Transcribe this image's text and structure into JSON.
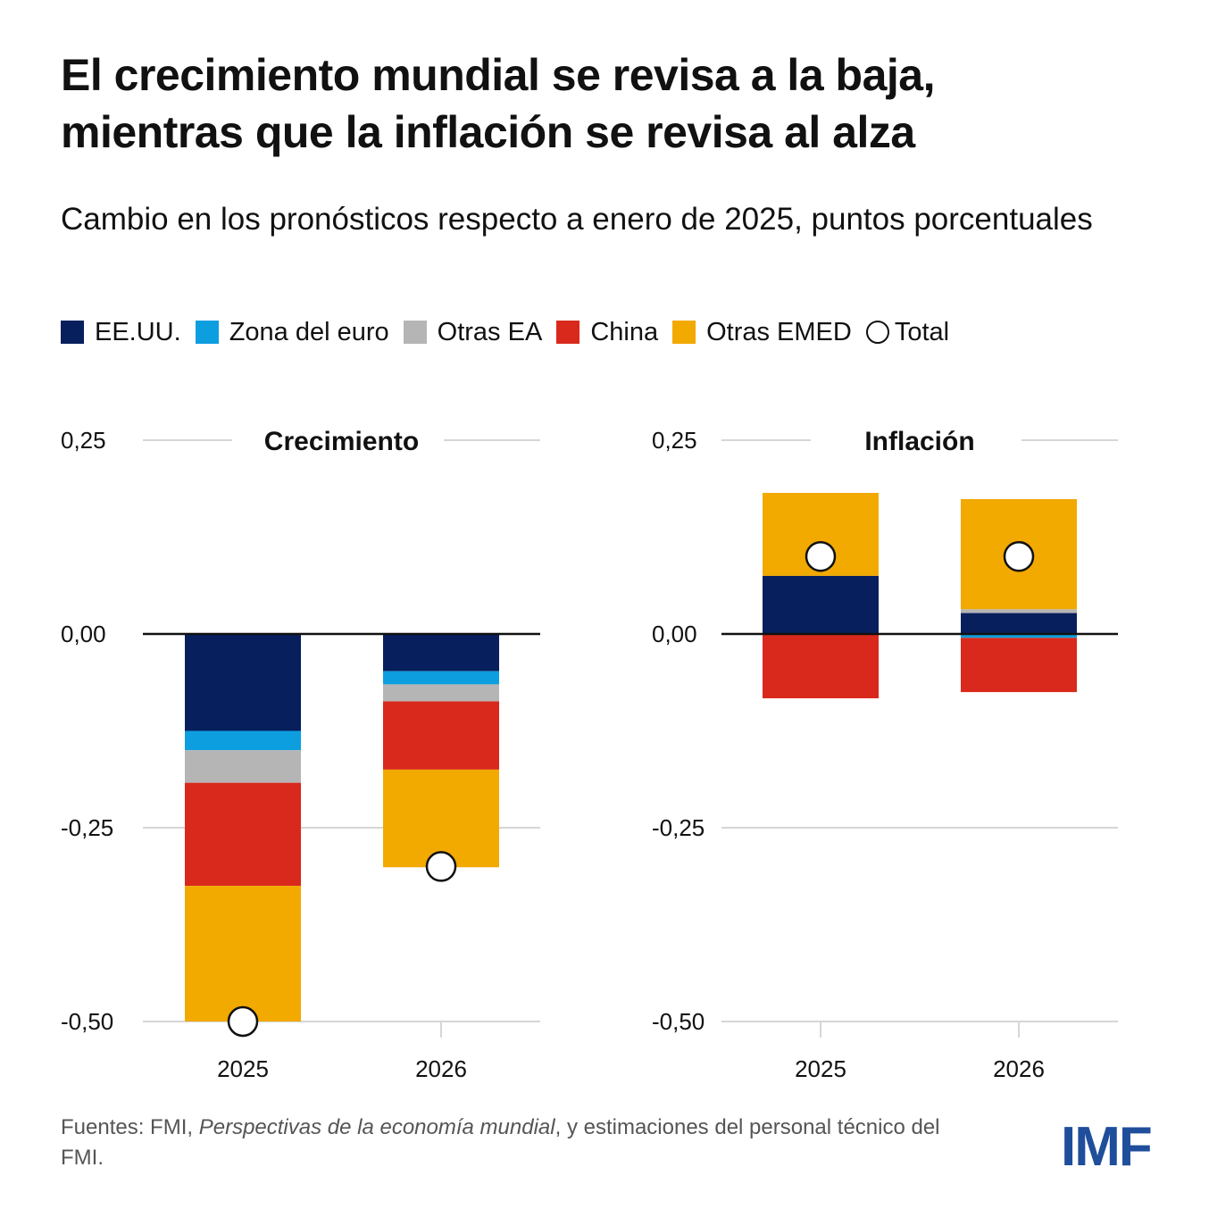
{
  "title_line1": "El crecimiento mundial se revisa a la baja,",
  "title_line2": "mientras que la inflación se revisa al alza",
  "subtitle": "Cambio en los pronósticos respecto a enero de 2025, puntos porcentuales",
  "legend": [
    {
      "label": "EE.UU.",
      "color": "#071f5c",
      "shape": "square"
    },
    {
      "label": "Zona del euro",
      "color": "#0d9ee0",
      "shape": "square"
    },
    {
      "label": "Otras EA",
      "color": "#b5b5b5",
      "shape": "square"
    },
    {
      "label": "China",
      "color": "#d9291c",
      "shape": "square"
    },
    {
      "label": "Otras EMED",
      "color": "#f2a900",
      "shape": "square"
    },
    {
      "label": "Total",
      "color": "#ffffff",
      "shape": "circle"
    }
  ],
  "chart_data": [
    {
      "type": "bar",
      "stacked": true,
      "title": "Crecimiento",
      "categories": [
        "2025",
        "2026"
      ],
      "yticks": [
        "0,25",
        "0,00",
        "-0,25",
        "-0,50"
      ],
      "ylim": [
        -0.5,
        0.25
      ],
      "grid": true,
      "series": [
        {
          "name": "EE.UU.",
          "values": [
            -0.125,
            -0.048
          ]
        },
        {
          "name": "Zona del euro",
          "values": [
            -0.025,
            -0.017
          ]
        },
        {
          "name": "Otras EA",
          "values": [
            -0.042,
            -0.022
          ]
        },
        {
          "name": "China",
          "values": [
            -0.133,
            -0.088
          ]
        },
        {
          "name": "Otras EMED",
          "values": [
            -0.175,
            -0.126
          ]
        }
      ],
      "total": [
        -0.5,
        -0.3
      ]
    },
    {
      "type": "bar",
      "stacked": true,
      "title": "Inflación",
      "categories": [
        "2025",
        "2026"
      ],
      "yticks": [
        "0,25",
        "0,00",
        "-0,25",
        "-0,50"
      ],
      "ylim": [
        -0.5,
        0.25
      ],
      "grid": true,
      "series": [
        {
          "name": "EE.UU.",
          "values": [
            0.075,
            0.027
          ]
        },
        {
          "name": "Zona del euro",
          "values": [
            0.0,
            -0.005
          ]
        },
        {
          "name": "Otras EA",
          "values": [
            0.0,
            0.005
          ]
        },
        {
          "name": "China",
          "values": [
            -0.083,
            -0.07
          ]
        },
        {
          "name": "Otras EMED",
          "values": [
            0.107,
            0.142
          ]
        }
      ],
      "total": [
        0.1,
        0.1
      ]
    }
  ],
  "source_prefix": "Fuentes: FMI, ",
  "source_italic": "Perspectivas de la economía mundial",
  "source_suffix": ", y estimaciones del personal técnico del FMI.",
  "logo": "IMF"
}
